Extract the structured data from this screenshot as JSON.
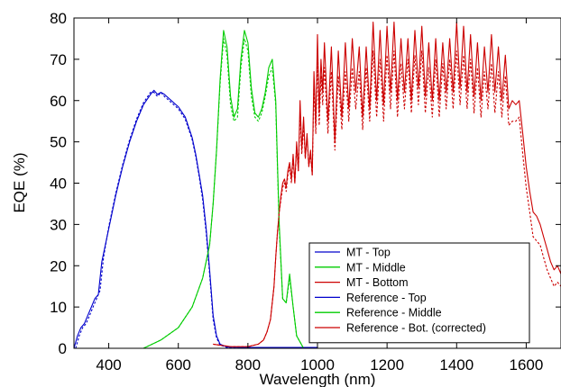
{
  "chart_data": {
    "type": "line",
    "title": "",
    "xlabel": "Wavelength (nm)",
    "ylabel": "EQE (%)",
    "xlim": [
      300,
      1700
    ],
    "ylim": [
      0,
      80
    ],
    "xticks": [
      400,
      600,
      800,
      1000,
      1200,
      1400,
      1600
    ],
    "yticks": [
      0,
      10,
      20,
      30,
      40,
      50,
      60,
      70,
      80
    ],
    "grid": false,
    "legend_position": "bottom-right",
    "series": [
      {
        "name": "MT - Top",
        "color": "#0000cc",
        "style": "solid",
        "x": [
          300,
          310,
          320,
          330,
          340,
          350,
          360,
          370,
          380,
          400,
          420,
          440,
          460,
          480,
          500,
          520,
          530,
          540,
          550,
          560,
          580,
          600,
          620,
          640,
          650,
          660,
          670,
          680,
          690,
          700,
          710,
          720,
          740,
          800,
          1000
        ],
        "y": [
          0,
          3,
          5,
          6,
          8,
          10,
          12,
          13,
          21,
          29,
          37,
          44,
          50,
          55,
          59,
          61.5,
          62.5,
          61.5,
          62,
          61.5,
          60,
          58.5,
          56,
          51,
          47,
          42,
          37,
          29,
          19,
          8,
          3,
          1,
          0.3,
          0.2,
          0.2
        ]
      },
      {
        "name": "MT - Middle",
        "color": "#00cc00",
        "style": "solid",
        "x": [
          500,
          550,
          600,
          640,
          670,
          690,
          700,
          710,
          720,
          730,
          740,
          750,
          760,
          770,
          780,
          790,
          800,
          810,
          820,
          830,
          840,
          850,
          860,
          870,
          880,
          885,
          890,
          900,
          910,
          920,
          930,
          940,
          960
        ],
        "y": [
          0,
          2,
          5,
          10,
          17,
          25,
          35,
          48,
          65,
          77,
          73,
          61,
          56,
          58,
          70,
          77,
          74,
          63,
          57,
          56,
          58,
          62,
          68,
          70,
          60,
          45,
          30,
          12,
          11,
          18,
          10,
          3,
          0
        ]
      },
      {
        "name": "MT - Bottom",
        "color": "#cc0000",
        "style": "solid",
        "x": [
          700,
          750,
          800,
          830,
          845,
          855,
          865,
          875,
          880,
          885,
          890,
          895,
          900,
          905,
          910,
          915,
          920,
          925,
          930,
          935,
          940,
          945,
          950,
          955,
          960,
          965,
          970,
          975,
          980,
          985,
          990,
          995,
          1000,
          1005,
          1010,
          1015,
          1020,
          1030,
          1040,
          1050,
          1060,
          1070,
          1080,
          1090,
          1100,
          1110,
          1120,
          1130,
          1140,
          1150,
          1160,
          1170,
          1180,
          1190,
          1200,
          1210,
          1220,
          1230,
          1240,
          1250,
          1260,
          1270,
          1280,
          1290,
          1300,
          1310,
          1320,
          1330,
          1340,
          1350,
          1360,
          1370,
          1380,
          1390,
          1400,
          1410,
          1420,
          1430,
          1440,
          1450,
          1460,
          1470,
          1480,
          1490,
          1500,
          1510,
          1520,
          1530,
          1540,
          1550,
          1560,
          1570,
          1580,
          1590,
          1600,
          1610,
          1620,
          1630,
          1640,
          1650,
          1660,
          1670,
          1680,
          1690,
          1700
        ],
        "y": [
          1,
          0.4,
          0.4,
          1,
          2,
          4,
          7,
          15,
          22,
          28,
          33,
          37,
          40,
          41,
          39,
          43,
          45,
          41,
          47,
          40,
          50,
          43,
          60,
          48,
          56,
          46,
          52,
          44,
          48,
          42,
          67,
          54,
          76,
          57,
          70,
          62,
          74,
          55,
          73,
          50,
          72,
          56,
          74,
          58,
          75,
          62,
          73,
          56,
          73,
          58,
          79,
          60,
          77,
          59,
          78,
          62,
          79,
          60,
          75,
          62,
          75,
          60,
          77,
          63,
          78,
          61,
          74,
          60,
          75,
          60,
          74,
          62,
          75,
          62,
          79,
          63,
          78,
          62,
          76,
          61,
          74,
          60,
          73,
          62,
          76,
          62,
          73,
          60,
          71,
          58,
          60,
          59,
          60,
          52,
          44,
          38,
          33,
          32,
          30,
          27,
          24,
          21,
          19,
          20,
          18
        ]
      },
      {
        "name": "Reference - Top",
        "color": "#0000cc",
        "style": "dotted",
        "x": [
          305,
          315,
          325,
          335,
          345,
          355,
          365,
          375,
          385,
          400,
          420,
          440,
          460,
          480,
          500,
          520,
          530,
          540,
          550,
          560,
          580,
          600,
          620,
          640,
          650,
          660,
          670,
          680,
          690,
          700,
          710,
          720,
          740,
          800,
          1000
        ],
        "y": [
          0,
          3,
          5,
          6,
          8,
          10,
          12,
          14,
          22,
          29.5,
          37.5,
          44.5,
          50.5,
          55.5,
          59.5,
          62,
          62,
          61,
          62,
          61,
          59.5,
          58,
          55.5,
          50.5,
          46.5,
          41.5,
          36,
          28,
          18,
          7,
          2.5,
          0.8,
          0.2,
          0.2,
          0.2
        ]
      },
      {
        "name": "Reference - Middle",
        "color": "#00cc00",
        "style": "dotted",
        "x": [
          500,
          550,
          600,
          640,
          670,
          690,
          700,
          710,
          720,
          730,
          740,
          750,
          760,
          770,
          780,
          790,
          800,
          810,
          820,
          830,
          840,
          850,
          860,
          870,
          880,
          885,
          890,
          900,
          910,
          920,
          930,
          940,
          960
        ],
        "y": [
          0,
          2,
          5,
          10,
          17,
          25,
          35,
          48,
          64,
          75,
          71,
          59,
          55,
          56,
          68,
          75,
          72,
          61,
          56,
          55,
          57,
          61,
          66,
          68,
          59,
          44,
          29,
          12,
          11,
          17,
          10,
          3,
          0
        ]
      },
      {
        "name": "Reference - Bot. (corrected)",
        "color": "#cc0000",
        "style": "dotted",
        "x": [
          700,
          750,
          800,
          830,
          845,
          855,
          865,
          875,
          880,
          885,
          890,
          895,
          900,
          905,
          910,
          915,
          920,
          925,
          930,
          935,
          940,
          945,
          950,
          955,
          960,
          965,
          970,
          975,
          980,
          985,
          990,
          995,
          1000,
          1005,
          1010,
          1015,
          1020,
          1030,
          1040,
          1050,
          1060,
          1070,
          1080,
          1090,
          1100,
          1110,
          1120,
          1130,
          1140,
          1150,
          1160,
          1170,
          1180,
          1190,
          1200,
          1210,
          1220,
          1230,
          1240,
          1250,
          1260,
          1270,
          1280,
          1290,
          1300,
          1310,
          1320,
          1330,
          1340,
          1350,
          1360,
          1370,
          1380,
          1390,
          1400,
          1410,
          1420,
          1430,
          1440,
          1450,
          1460,
          1470,
          1480,
          1490,
          1500,
          1510,
          1520,
          1530,
          1540,
          1550,
          1560,
          1570,
          1580,
          1590,
          1600,
          1610,
          1620,
          1630,
          1640,
          1650,
          1660,
          1670,
          1680,
          1690,
          1700
        ],
        "y": [
          1,
          0.4,
          0.4,
          1,
          2,
          4,
          7,
          15,
          22,
          28,
          33,
          36,
          39,
          40,
          38,
          42,
          44,
          40,
          46,
          40,
          49,
          43,
          57,
          47,
          54,
          46,
          51,
          44,
          47,
          42,
          64,
          52,
          70,
          54,
          66,
          59,
          68,
          52,
          67,
          48,
          66,
          53,
          67,
          55,
          68,
          58,
          67,
          53,
          68,
          55,
          72,
          56,
          70,
          55,
          71,
          58,
          72,
          56,
          69,
          58,
          70,
          57,
          71,
          59,
          72,
          57,
          68,
          56,
          70,
          56,
          69,
          58,
          70,
          58,
          72,
          59,
          71,
          58,
          70,
          57,
          68,
          56,
          67,
          58,
          69,
          57,
          67,
          56,
          66,
          54,
          55,
          55,
          56,
          47,
          39,
          33,
          27,
          26,
          25,
          22,
          19,
          17,
          15,
          16,
          15
        ]
      }
    ]
  }
}
